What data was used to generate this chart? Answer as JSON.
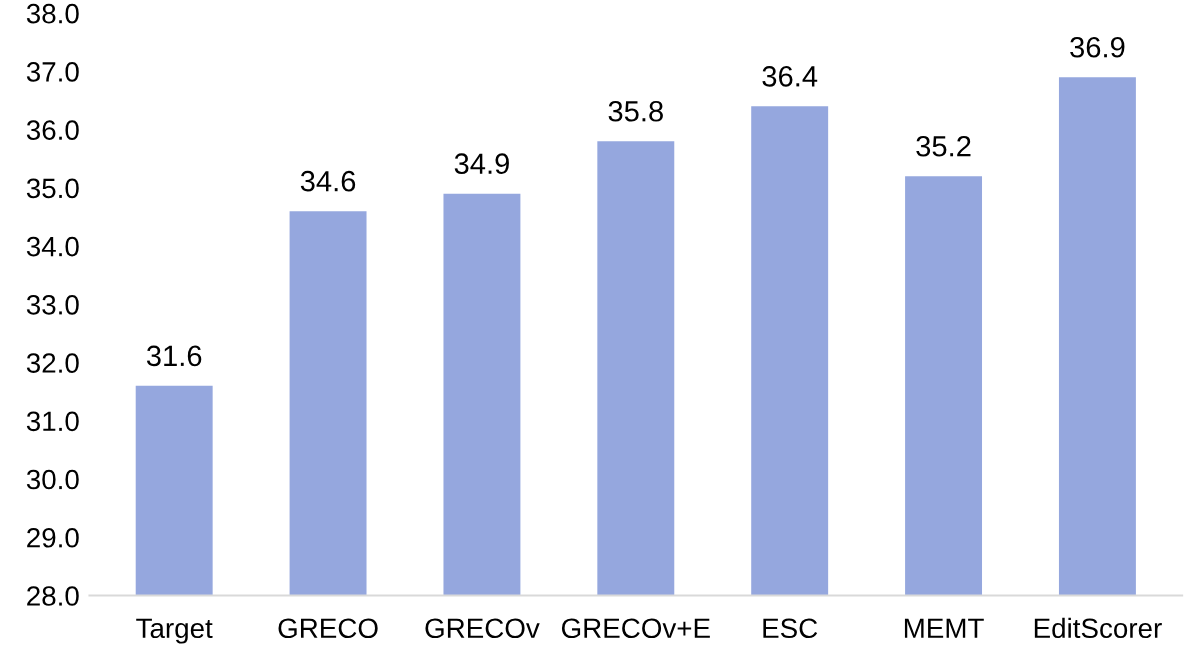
{
  "chart_data": {
    "type": "bar",
    "categories": [
      "Target",
      "GRECO",
      "GRECOv",
      "GRECOv+E",
      "ESC",
      "MEMT",
      "EditScorer"
    ],
    "values": [
      31.6,
      34.6,
      34.9,
      35.8,
      36.4,
      35.2,
      36.9
    ],
    "color": "#95a7de",
    "ylim": [
      28,
      38
    ],
    "yticks": [
      {
        "value": 28,
        "label": "28.0"
      },
      {
        "value": 29,
        "label": "29.0"
      },
      {
        "value": 30,
        "label": "30.0"
      },
      {
        "value": 31,
        "label": "31.0"
      },
      {
        "value": 32,
        "label": "32.0"
      },
      {
        "value": 33,
        "label": "33.0"
      },
      {
        "value": 34,
        "label": "34.0"
      },
      {
        "value": 35,
        "label": "35.0"
      },
      {
        "value": 36,
        "label": "36.0"
      },
      {
        "value": 37,
        "label": "37.0"
      },
      {
        "value": 38,
        "label": "38.0"
      }
    ],
    "data_labels": true,
    "grid": false,
    "legend": false
  }
}
